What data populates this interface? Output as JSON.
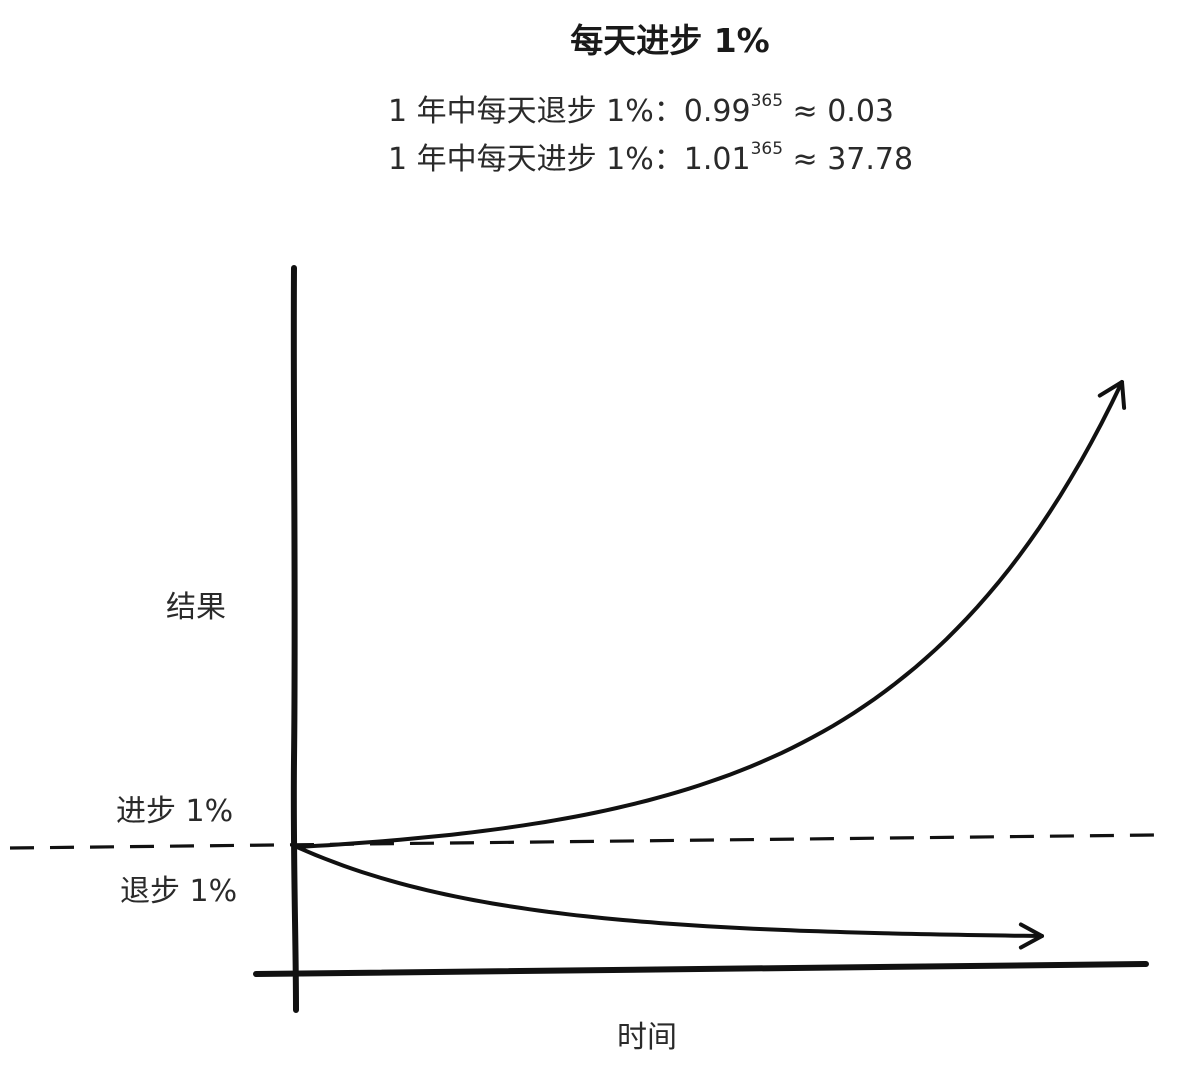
{
  "chart_data": {
    "type": "line",
    "title": "每天进步 1%",
    "formulas": {
      "decline": {
        "prefix": "1 年中每天退步 1%：0.99",
        "exponent": "365",
        "suffix": " ≈ 0.03"
      },
      "growth": {
        "prefix": "1 年中每天进步 1%：1.01",
        "exponent": "365",
        "suffix": " ≈ 37.78"
      }
    },
    "xlabel": "时间",
    "ylabel": "结果",
    "baseline": 1,
    "exponent_days": 365,
    "series": [
      {
        "name": "进步 1%",
        "rate": 1.01,
        "end_value": 37.78
      },
      {
        "name": "退步 1%",
        "rate": 0.99,
        "end_value": 0.03
      }
    ],
    "colors": {
      "ink": "#111111",
      "text": "#2a2a2a"
    }
  }
}
